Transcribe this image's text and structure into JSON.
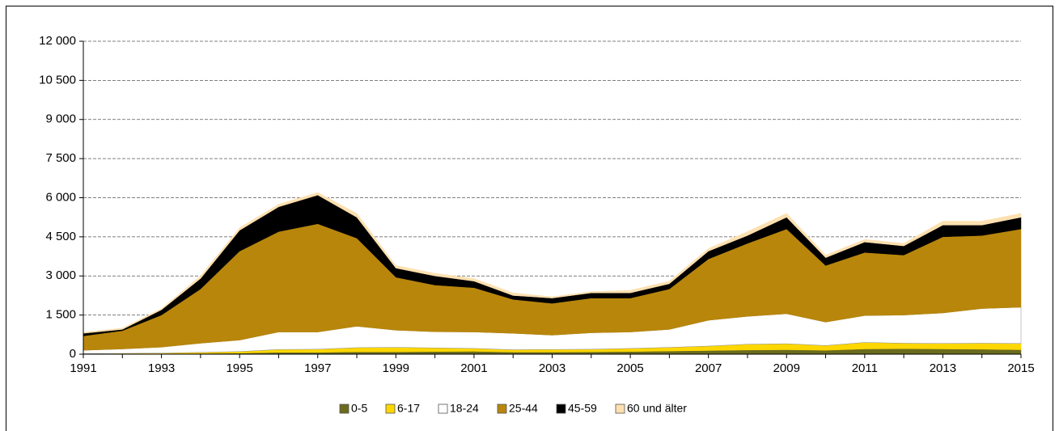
{
  "chart_data": {
    "type": "stacked_area",
    "x": [
      1991,
      1992,
      1993,
      1994,
      1995,
      1996,
      1997,
      1998,
      1999,
      2000,
      2001,
      2002,
      2003,
      2004,
      2005,
      2006,
      2007,
      2008,
      2009,
      2010,
      2011,
      2012,
      2013,
      2014,
      2015
    ],
    "xlim": [
      1991,
      2015
    ],
    "xticks": [
      1991,
      1993,
      1995,
      1997,
      1999,
      2001,
      2003,
      2005,
      2007,
      2009,
      2011,
      2013,
      2015
    ],
    "ylim": [
      0,
      12000
    ],
    "yticks": [
      0,
      {
        "value": 1500,
        "label": "1 500"
      },
      {
        "value": 3000,
        "label": "3 000"
      },
      {
        "value": 4500,
        "label": "4 500"
      },
      {
        "value": 6000,
        "label": "6 000"
      },
      {
        "value": 7500,
        "label": "7 500"
      },
      {
        "value": 9000,
        "label": "9 000"
      },
      {
        "value": 10500,
        "label": "10 500"
      },
      {
        "value": 12000,
        "label": "12 000"
      }
    ],
    "grid": true,
    "legend": "bottom",
    "series": [
      {
        "name": "0-5",
        "color": "#6b6b1e",
        "values": [
          5,
          10,
          15,
          30,
          40,
          70,
          70,
          90,
          90,
          100,
          110,
          80,
          80,
          90,
          100,
          120,
          140,
          160,
          170,
          150,
          200,
          210,
          200,
          190,
          170
        ]
      },
      {
        "name": "6-17",
        "color": "#ffd700",
        "values": [
          15,
          20,
          25,
          40,
          60,
          110,
          120,
          160,
          170,
          140,
          110,
          90,
          100,
          100,
          120,
          140,
          170,
          220,
          230,
          180,
          250,
          210,
          210,
          230,
          240
        ]
      },
      {
        "name": "18-24",
        "color": "#ffffff",
        "values": [
          130,
          170,
          230,
          350,
          440,
          670,
          660,
          820,
          660,
          620,
          630,
          630,
          550,
          630,
          630,
          690,
          990,
          1070,
          1150,
          900,
          1030,
          1080,
          1170,
          1330,
          1390
        ]
      },
      {
        "name": "25-44",
        "color": "#b8860b",
        "values": [
          550,
          700,
          1230,
          2080,
          3410,
          3850,
          4150,
          3380,
          2030,
          1790,
          1700,
          1300,
          1220,
          1330,
          1300,
          1550,
          2350,
          2800,
          3250,
          2170,
          2420,
          2300,
          2920,
          2800,
          3000
        ]
      },
      {
        "name": "45-59",
        "color": "#000000",
        "values": [
          100,
          50,
          200,
          400,
          800,
          950,
          1100,
          800,
          350,
          350,
          250,
          150,
          200,
          200,
          200,
          200,
          300,
          300,
          450,
          300,
          400,
          350,
          450,
          400,
          450
        ]
      },
      {
        "name": "60 und älter",
        "color": "#fde0b0",
        "values": [
          40,
          50,
          50,
          100,
          100,
          100,
          100,
          150,
          100,
          100,
          100,
          100,
          50,
          50,
          100,
          100,
          100,
          150,
          150,
          100,
          100,
          100,
          150,
          150,
          150
        ]
      }
    ]
  }
}
